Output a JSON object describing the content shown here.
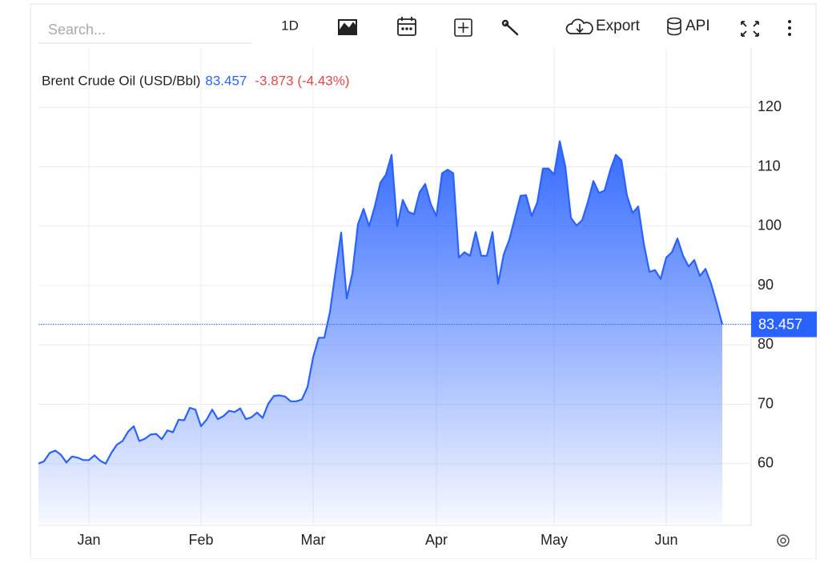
{
  "toolbar": {
    "search_placeholder": "Search...",
    "interval": "1D",
    "export": "Export",
    "api": "API"
  },
  "chart_data": {
    "type": "area",
    "title": "Brent Crude Oil (USD/Bbl)",
    "change": "-3.873 (-4.43%)",
    "categories": [
      null,
      null,
      null,
      null,
      null,
      null,
      null,
      null,
      null,
      "Jan",
      null,
      null,
      null,
      null,
      null,
      null,
      null,
      null,
      null,
      null,
      null,
      null,
      null,
      null,
      null,
      null,
      null,
      null,
      null,
      "Feb",
      null,
      null,
      null,
      null,
      null,
      null,
      null,
      null,
      null,
      null,
      null,
      null,
      null,
      null,
      null,
      null,
      null,
      null,
      null,
      "Mar",
      null,
      null,
      null,
      null,
      null,
      null,
      null,
      null,
      null,
      null,
      null,
      null,
      null,
      null,
      null,
      null,
      null,
      null,
      null,
      null,
      null,
      "Apr",
      null,
      null,
      null,
      null,
      null,
      null,
      null,
      null,
      null,
      null,
      null,
      null,
      null,
      null,
      null,
      null,
      null,
      null,
      null,
      null,
      "May",
      null,
      null,
      null,
      null,
      null,
      null,
      null,
      null,
      null,
      null,
      null,
      null,
      null,
      null,
      null,
      null,
      null,
      null,
      null,
      "Jun",
      null,
      null,
      null,
      null,
      null,
      null,
      null,
      null,
      null,
      null
    ],
    "series": [
      {
        "name": "Brent Crude Oil (USD/Bbl)",
        "color": "#2962ff",
        "values": [
          60,
          60.4,
          61.8,
          62.2,
          61.5,
          60.2,
          61.2,
          61,
          60.6,
          60.6,
          61.4,
          60.5,
          60,
          61.8,
          63.2,
          63.8,
          65.4,
          66.3,
          63.8,
          64.2,
          64.9,
          65,
          64.1,
          65.6,
          65.3,
          67.4,
          67.3,
          69.4,
          69.1,
          66.3,
          67.4,
          69.1,
          67.5,
          68,
          68.9,
          68.7,
          69.3,
          67.5,
          67.8,
          68.6,
          67.7,
          70.1,
          71.4,
          71.5,
          71.3,
          70.5,
          70.5,
          70.8,
          72.9,
          77.9,
          81.2,
          81.2,
          85.5,
          92.3,
          98.9,
          87.8,
          92,
          100.3,
          102.9,
          100,
          103.3,
          107.3,
          108.7,
          112,
          100,
          104.4,
          102.4,
          102,
          105.7,
          107.1,
          103.7,
          101.7,
          108.9,
          109.5,
          108.9,
          94.7,
          95.6,
          95,
          99,
          95,
          95,
          99,
          90.3,
          95.2,
          97.7,
          101.4,
          105.1,
          105.2,
          101.7,
          104,
          109.7,
          109.7,
          108.7,
          114.3,
          110,
          101.4,
          100.1,
          101,
          104,
          107.6,
          105.6,
          106,
          109.4,
          112,
          111.1,
          105.1,
          102.2,
          103.3,
          97,
          92.3,
          92.6,
          91.1,
          94.7,
          95.6,
          97.9,
          95,
          93.2,
          94.3,
          91.6,
          92.8,
          90.3,
          87,
          83.457
        ]
      }
    ],
    "ylim": [
      50,
      130
    ],
    "yticks": [
      60,
      70,
      80,
      90,
      100,
      110,
      120
    ],
    "grid": true
  }
}
